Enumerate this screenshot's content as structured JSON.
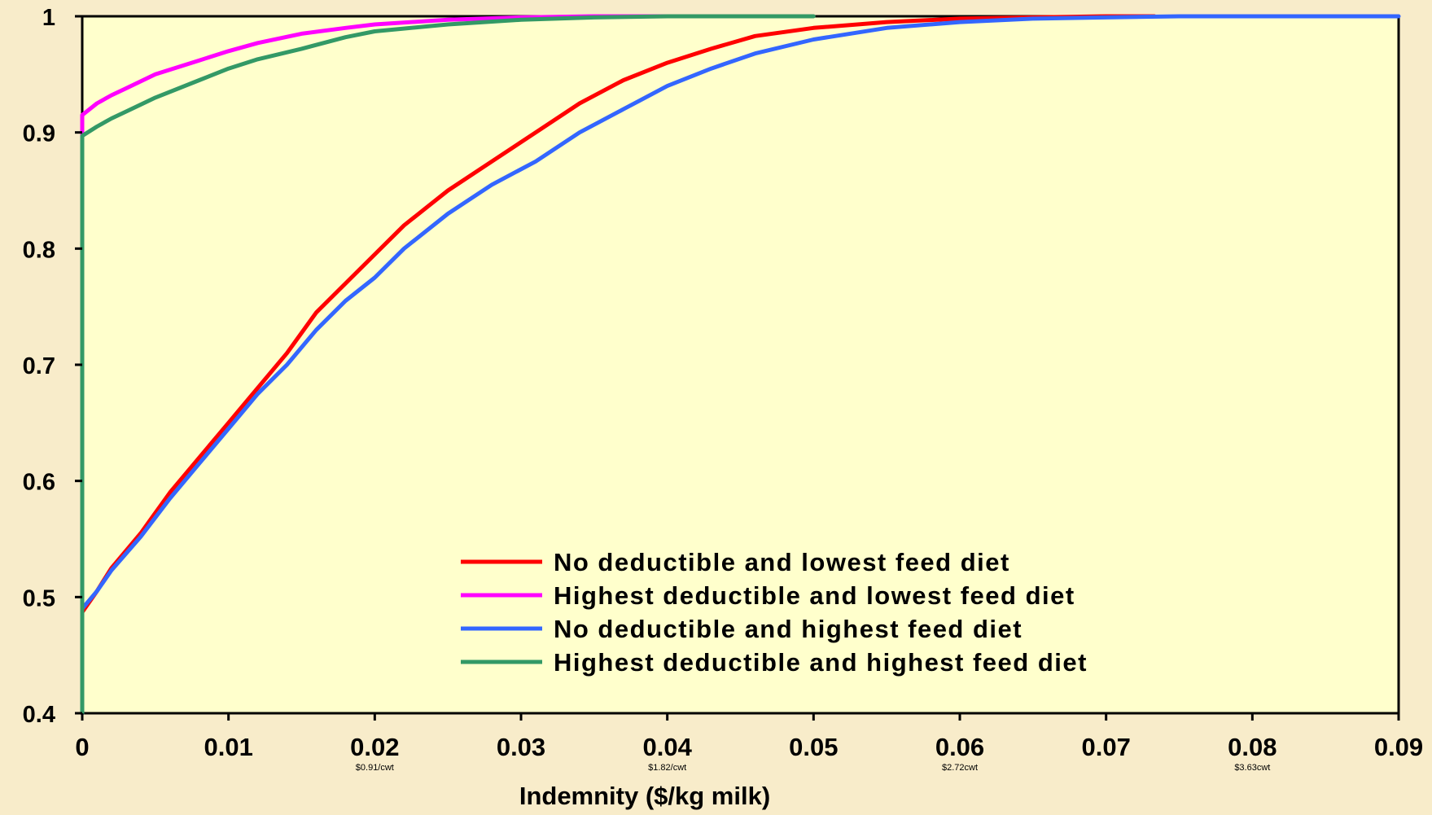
{
  "chart_data": {
    "type": "line",
    "title": "",
    "xlabel": "Indemnity ($/kg milk)",
    "ylabel": "",
    "xlim": [
      0,
      0.09
    ],
    "ylim": [
      0.4,
      1
    ],
    "x_ticks": [
      "0",
      "0.01",
      "0.02",
      "0.03",
      "0.04",
      "0.05",
      "0.06",
      "0.07",
      "0.08",
      "0.09"
    ],
    "y_ticks": [
      "0.4",
      "0.5",
      "0.6",
      "0.7",
      "0.8",
      "0.9",
      "1"
    ],
    "x_tick_sublabels": [
      {
        "x": 0.02,
        "text": "$0.91/cwt"
      },
      {
        "x": 0.04,
        "text": "$1.82/cwt"
      },
      {
        "x": 0.06,
        "text": "$2.72cwt"
      },
      {
        "x": 0.08,
        "text": "$3.63cwt"
      }
    ],
    "grid": false,
    "legend_position": "bottom-right",
    "colors": {
      "plot_background": "#ffffcc",
      "page_background": "#f8ecca"
    },
    "series": [
      {
        "name": "No deductible and lowest feed diet",
        "color": "#ff0000",
        "x": [
          0,
          0,
          0.001,
          0.002,
          0.004,
          0.006,
          0.008,
          0.01,
          0.012,
          0.014,
          0.016,
          0.018,
          0.02,
          0.022,
          0.025,
          0.028,
          0.031,
          0.034,
          0.037,
          0.04,
          0.043,
          0.046,
          0.05,
          0.055,
          0.06,
          0.065,
          0.07,
          0.0733
        ],
        "y": [
          0.4,
          0.487,
          0.505,
          0.525,
          0.555,
          0.59,
          0.62,
          0.65,
          0.68,
          0.71,
          0.745,
          0.77,
          0.795,
          0.82,
          0.85,
          0.875,
          0.9,
          0.925,
          0.945,
          0.96,
          0.972,
          0.983,
          0.99,
          0.995,
          0.998,
          0.999,
          1.0,
          1.0
        ]
      },
      {
        "name": "Highest deductible and lowest feed diet",
        "color": "#ff00ff",
        "x": [
          0,
          0,
          0.001,
          0.002,
          0.003,
          0.005,
          0.008,
          0.01,
          0.012,
          0.015,
          0.018,
          0.02,
          0.025,
          0.03,
          0.035,
          0.04
        ],
        "y": [
          0.4,
          0.915,
          0.925,
          0.932,
          0.938,
          0.95,
          0.962,
          0.97,
          0.977,
          0.985,
          0.99,
          0.993,
          0.997,
          0.999,
          1.0,
          1.0
        ]
      },
      {
        "name": "No deductible and highest feed diet",
        "color": "#3366ff",
        "x": [
          0,
          0,
          0.001,
          0.002,
          0.004,
          0.006,
          0.008,
          0.01,
          0.012,
          0.014,
          0.016,
          0.018,
          0.02,
          0.022,
          0.025,
          0.028,
          0.031,
          0.034,
          0.037,
          0.04,
          0.043,
          0.046,
          0.05,
          0.055,
          0.06,
          0.065,
          0.07,
          0.075,
          0.09
        ],
        "y": [
          0.4,
          0.49,
          0.505,
          0.523,
          0.552,
          0.585,
          0.615,
          0.645,
          0.675,
          0.7,
          0.73,
          0.755,
          0.775,
          0.8,
          0.83,
          0.855,
          0.875,
          0.9,
          0.92,
          0.94,
          0.955,
          0.968,
          0.98,
          0.99,
          0.995,
          0.998,
          0.999,
          1.0,
          1.0
        ]
      },
      {
        "name": "Highest deductible and highest feed diet",
        "color": "#339966",
        "x": [
          0,
          0,
          0.001,
          0.002,
          0.003,
          0.005,
          0.008,
          0.01,
          0.012,
          0.015,
          0.018,
          0.02,
          0.025,
          0.03,
          0.035,
          0.04,
          0.045,
          0.05
        ],
        "y": [
          0.4,
          0.897,
          0.905,
          0.912,
          0.918,
          0.93,
          0.945,
          0.955,
          0.963,
          0.972,
          0.982,
          0.987,
          0.993,
          0.997,
          0.999,
          1.0,
          1.0,
          1.0
        ]
      }
    ]
  }
}
